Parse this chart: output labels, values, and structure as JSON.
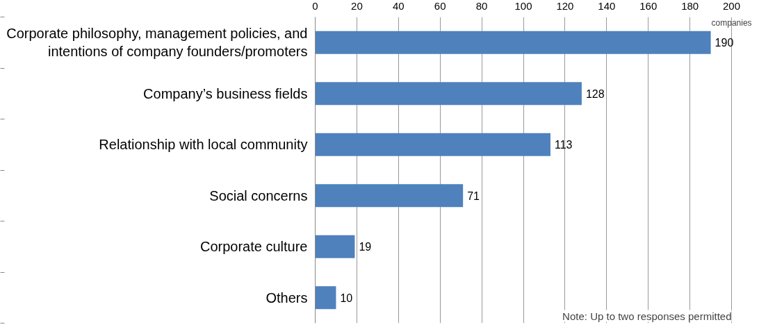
{
  "chart_data": {
    "type": "bar",
    "orientation": "horizontal",
    "xlabel": "companies",
    "categories": [
      "Corporate philosophy, management policies, and intentions of company founders/promoters",
      "Company’s business fields",
      "Relationship with local community",
      "Social concerns",
      "Corporate culture",
      "Others"
    ],
    "values": [
      190,
      128,
      113,
      71,
      19,
      10
    ],
    "color": "#4f81bd",
    "data_labels": true,
    "xlim": [
      0,
      200
    ],
    "xticks": [
      0,
      20,
      40,
      60,
      80,
      100,
      120,
      140,
      160,
      180,
      200
    ],
    "grid": "x",
    "annotations": [
      "Note: Up to two responses permitted"
    ]
  }
}
